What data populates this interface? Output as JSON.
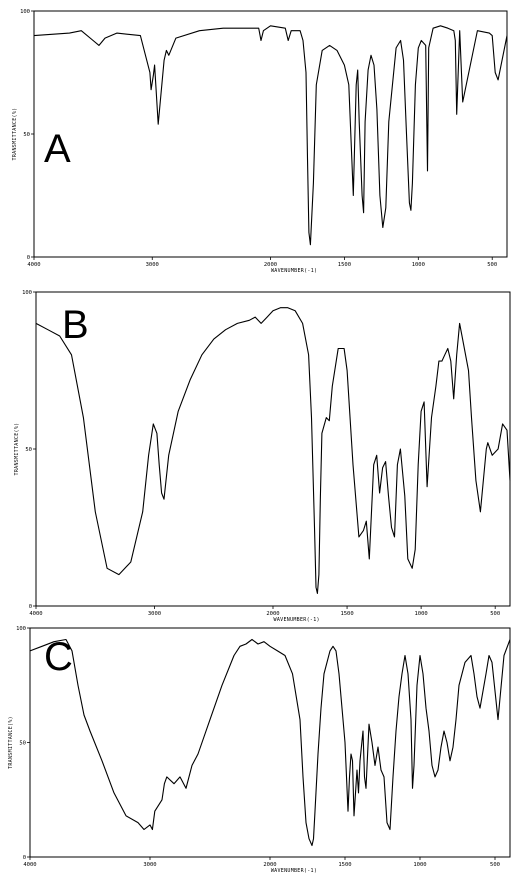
{
  "chart_data": [
    {
      "type": "line",
      "panel_label": "A",
      "xlabel": "WAVENUMBER(-1)",
      "ylabel": "TRANSMITTANCE(%)",
      "xlim": [
        4000,
        400
      ],
      "ylim": [
        0,
        100
      ],
      "xticks": [
        4000,
        3000,
        2000,
        1500,
        1000,
        500
      ],
      "xtick_labels": [
        "4000",
        "3000",
        "2000",
        "1500",
        "1000",
        "500"
      ],
      "yticks": [
        0,
        50,
        100
      ],
      "ytick_labels": [
        "0",
        "50",
        "100"
      ],
      "x": [
        4000,
        3700,
        3600,
        3500,
        3450,
        3400,
        3300,
        3100,
        3020,
        3010,
        2990,
        2980,
        2960,
        2950,
        2900,
        2880,
        2860,
        2800,
        2600,
        2400,
        2200,
        2100,
        2080,
        2060,
        2000,
        1900,
        1880,
        1860,
        1800,
        1780,
        1760,
        1750,
        1740,
        1730,
        1710,
        1690,
        1650,
        1600,
        1550,
        1500,
        1470,
        1450,
        1440,
        1420,
        1410,
        1400,
        1380,
        1370,
        1360,
        1340,
        1320,
        1300,
        1280,
        1260,
        1240,
        1220,
        1200,
        1150,
        1120,
        1100,
        1080,
        1060,
        1050,
        1040,
        1020,
        1000,
        980,
        950,
        938,
        930,
        900,
        850,
        800,
        760,
        750,
        740,
        720,
        700,
        600,
        520,
        500,
        480,
        460,
        400
      ],
      "values": [
        90,
        91,
        92,
        88,
        86,
        89,
        91,
        90,
        75,
        68,
        74,
        78,
        62,
        54,
        80,
        84,
        82,
        89,
        92,
        93,
        93,
        93,
        88,
        92,
        94,
        93,
        88,
        92,
        92,
        88,
        75,
        40,
        10,
        5,
        30,
        70,
        84,
        86,
        84,
        78,
        70,
        40,
        25,
        70,
        76,
        55,
        25,
        18,
        55,
        76,
        82,
        78,
        60,
        25,
        12,
        20,
        55,
        85,
        88,
        80,
        50,
        22,
        19,
        30,
        70,
        85,
        88,
        86,
        35,
        85,
        93,
        94,
        93,
        92,
        88,
        58,
        92,
        63,
        92,
        91,
        90,
        75,
        72,
        90
      ],
      "series": []
    },
    {
      "type": "line",
      "panel_label": "B",
      "xlabel": "WAVENUMBER(-1)",
      "ylabel": "TRANSMITTANCE(%)",
      "xlim": [
        4000,
        400
      ],
      "ylim": [
        0,
        100
      ],
      "xticks": [
        4000,
        3000,
        2000,
        1500,
        1000,
        500
      ],
      "xtick_labels": [
        "4000",
        "3000",
        "2000",
        "1500",
        "1000",
        "500"
      ],
      "yticks": [
        0,
        50,
        100
      ],
      "ytick_labels": [
        "0",
        "50",
        "100"
      ],
      "x": [
        4000,
        3900,
        3800,
        3700,
        3600,
        3500,
        3400,
        3300,
        3200,
        3100,
        3050,
        3010,
        2980,
        2960,
        2940,
        2920,
        2880,
        2800,
        2700,
        2600,
        2500,
        2400,
        2300,
        2200,
        2150,
        2100,
        2050,
        2000,
        1950,
        1900,
        1850,
        1800,
        1760,
        1740,
        1720,
        1710,
        1700,
        1690,
        1680,
        1670,
        1640,
        1620,
        1600,
        1560,
        1520,
        1500,
        1460,
        1420,
        1390,
        1370,
        1350,
        1320,
        1300,
        1280,
        1260,
        1240,
        1220,
        1200,
        1180,
        1160,
        1140,
        1110,
        1090,
        1060,
        1040,
        1020,
        1000,
        980,
        960,
        930,
        900,
        880,
        860,
        840,
        820,
        800,
        780,
        760,
        740,
        720,
        680,
        660,
        630,
        600,
        560,
        550,
        520,
        480,
        450,
        420,
        400
      ],
      "values": [
        90,
        88,
        86,
        80,
        60,
        30,
        12,
        10,
        14,
        30,
        48,
        58,
        55,
        45,
        36,
        34,
        48,
        62,
        72,
        80,
        85,
        88,
        90,
        91,
        92,
        90,
        92,
        94,
        95,
        95,
        94,
        90,
        80,
        60,
        25,
        6,
        4,
        10,
        35,
        55,
        60,
        59,
        70,
        82,
        82,
        75,
        45,
        22,
        24,
        27,
        15,
        45,
        48,
        36,
        44,
        46,
        35,
        25,
        22,
        45,
        50,
        35,
        15,
        12,
        18,
        45,
        62,
        65,
        38,
        60,
        70,
        78,
        78,
        80,
        82,
        78,
        66,
        80,
        90,
        85,
        75,
        60,
        40,
        30,
        50,
        52,
        48,
        50,
        58,
        56,
        40
      ],
      "series": []
    },
    {
      "type": "line",
      "panel_label": "C",
      "xlabel": "WAVENUMBER(-1)",
      "ylabel": "TRANSMITTANCE(%)",
      "xlim": [
        4000,
        400
      ],
      "ylim": [
        0,
        100
      ],
      "xticks": [
        4000,
        3000,
        2000,
        1500,
        1000,
        500
      ],
      "xtick_labels": [
        "4000",
        "3000",
        "2000",
        "1500",
        "1000",
        "500"
      ],
      "yticks": [
        0,
        50,
        100
      ],
      "ytick_labels": [
        "0",
        "50",
        "100"
      ],
      "x": [
        4000,
        3900,
        3800,
        3700,
        3650,
        3600,
        3550,
        3500,
        3400,
        3300,
        3200,
        3100,
        3050,
        3000,
        2980,
        2960,
        2900,
        2880,
        2860,
        2800,
        2750,
        2700,
        2650,
        2600,
        2500,
        2400,
        2300,
        2250,
        2200,
        2150,
        2100,
        2050,
        2000,
        1950,
        1900,
        1850,
        1800,
        1780,
        1760,
        1740,
        1720,
        1710,
        1700,
        1680,
        1660,
        1640,
        1600,
        1580,
        1560,
        1540,
        1500,
        1480,
        1470,
        1460,
        1450,
        1440,
        1420,
        1410,
        1400,
        1380,
        1370,
        1360,
        1340,
        1320,
        1300,
        1280,
        1260,
        1240,
        1220,
        1200,
        1180,
        1160,
        1140,
        1120,
        1100,
        1080,
        1060,
        1050,
        1040,
        1020,
        1000,
        980,
        960,
        940,
        920,
        900,
        880,
        860,
        840,
        820,
        800,
        780,
        760,
        740,
        700,
        660,
        640,
        620,
        600,
        560,
        540,
        520,
        480,
        440,
        400
      ],
      "values": [
        90,
        92,
        94,
        95,
        90,
        75,
        62,
        55,
        42,
        28,
        18,
        15,
        12,
        14,
        12,
        20,
        25,
        32,
        35,
        32,
        35,
        30,
        40,
        45,
        60,
        75,
        88,
        92,
        93,
        95,
        93,
        94,
        92,
        90,
        88,
        80,
        60,
        35,
        15,
        8,
        5,
        8,
        20,
        45,
        65,
        80,
        90,
        92,
        90,
        80,
        50,
        20,
        35,
        45,
        42,
        18,
        38,
        28,
        42,
        55,
        35,
        30,
        58,
        50,
        40,
        48,
        38,
        35,
        15,
        12,
        35,
        55,
        70,
        80,
        88,
        80,
        60,
        30,
        40,
        75,
        88,
        80,
        65,
        55,
        40,
        35,
        38,
        48,
        55,
        50,
        42,
        48,
        60,
        75,
        85,
        88,
        80,
        70,
        65,
        80,
        88,
        85,
        60,
        88,
        95
      ],
      "series": []
    }
  ]
}
